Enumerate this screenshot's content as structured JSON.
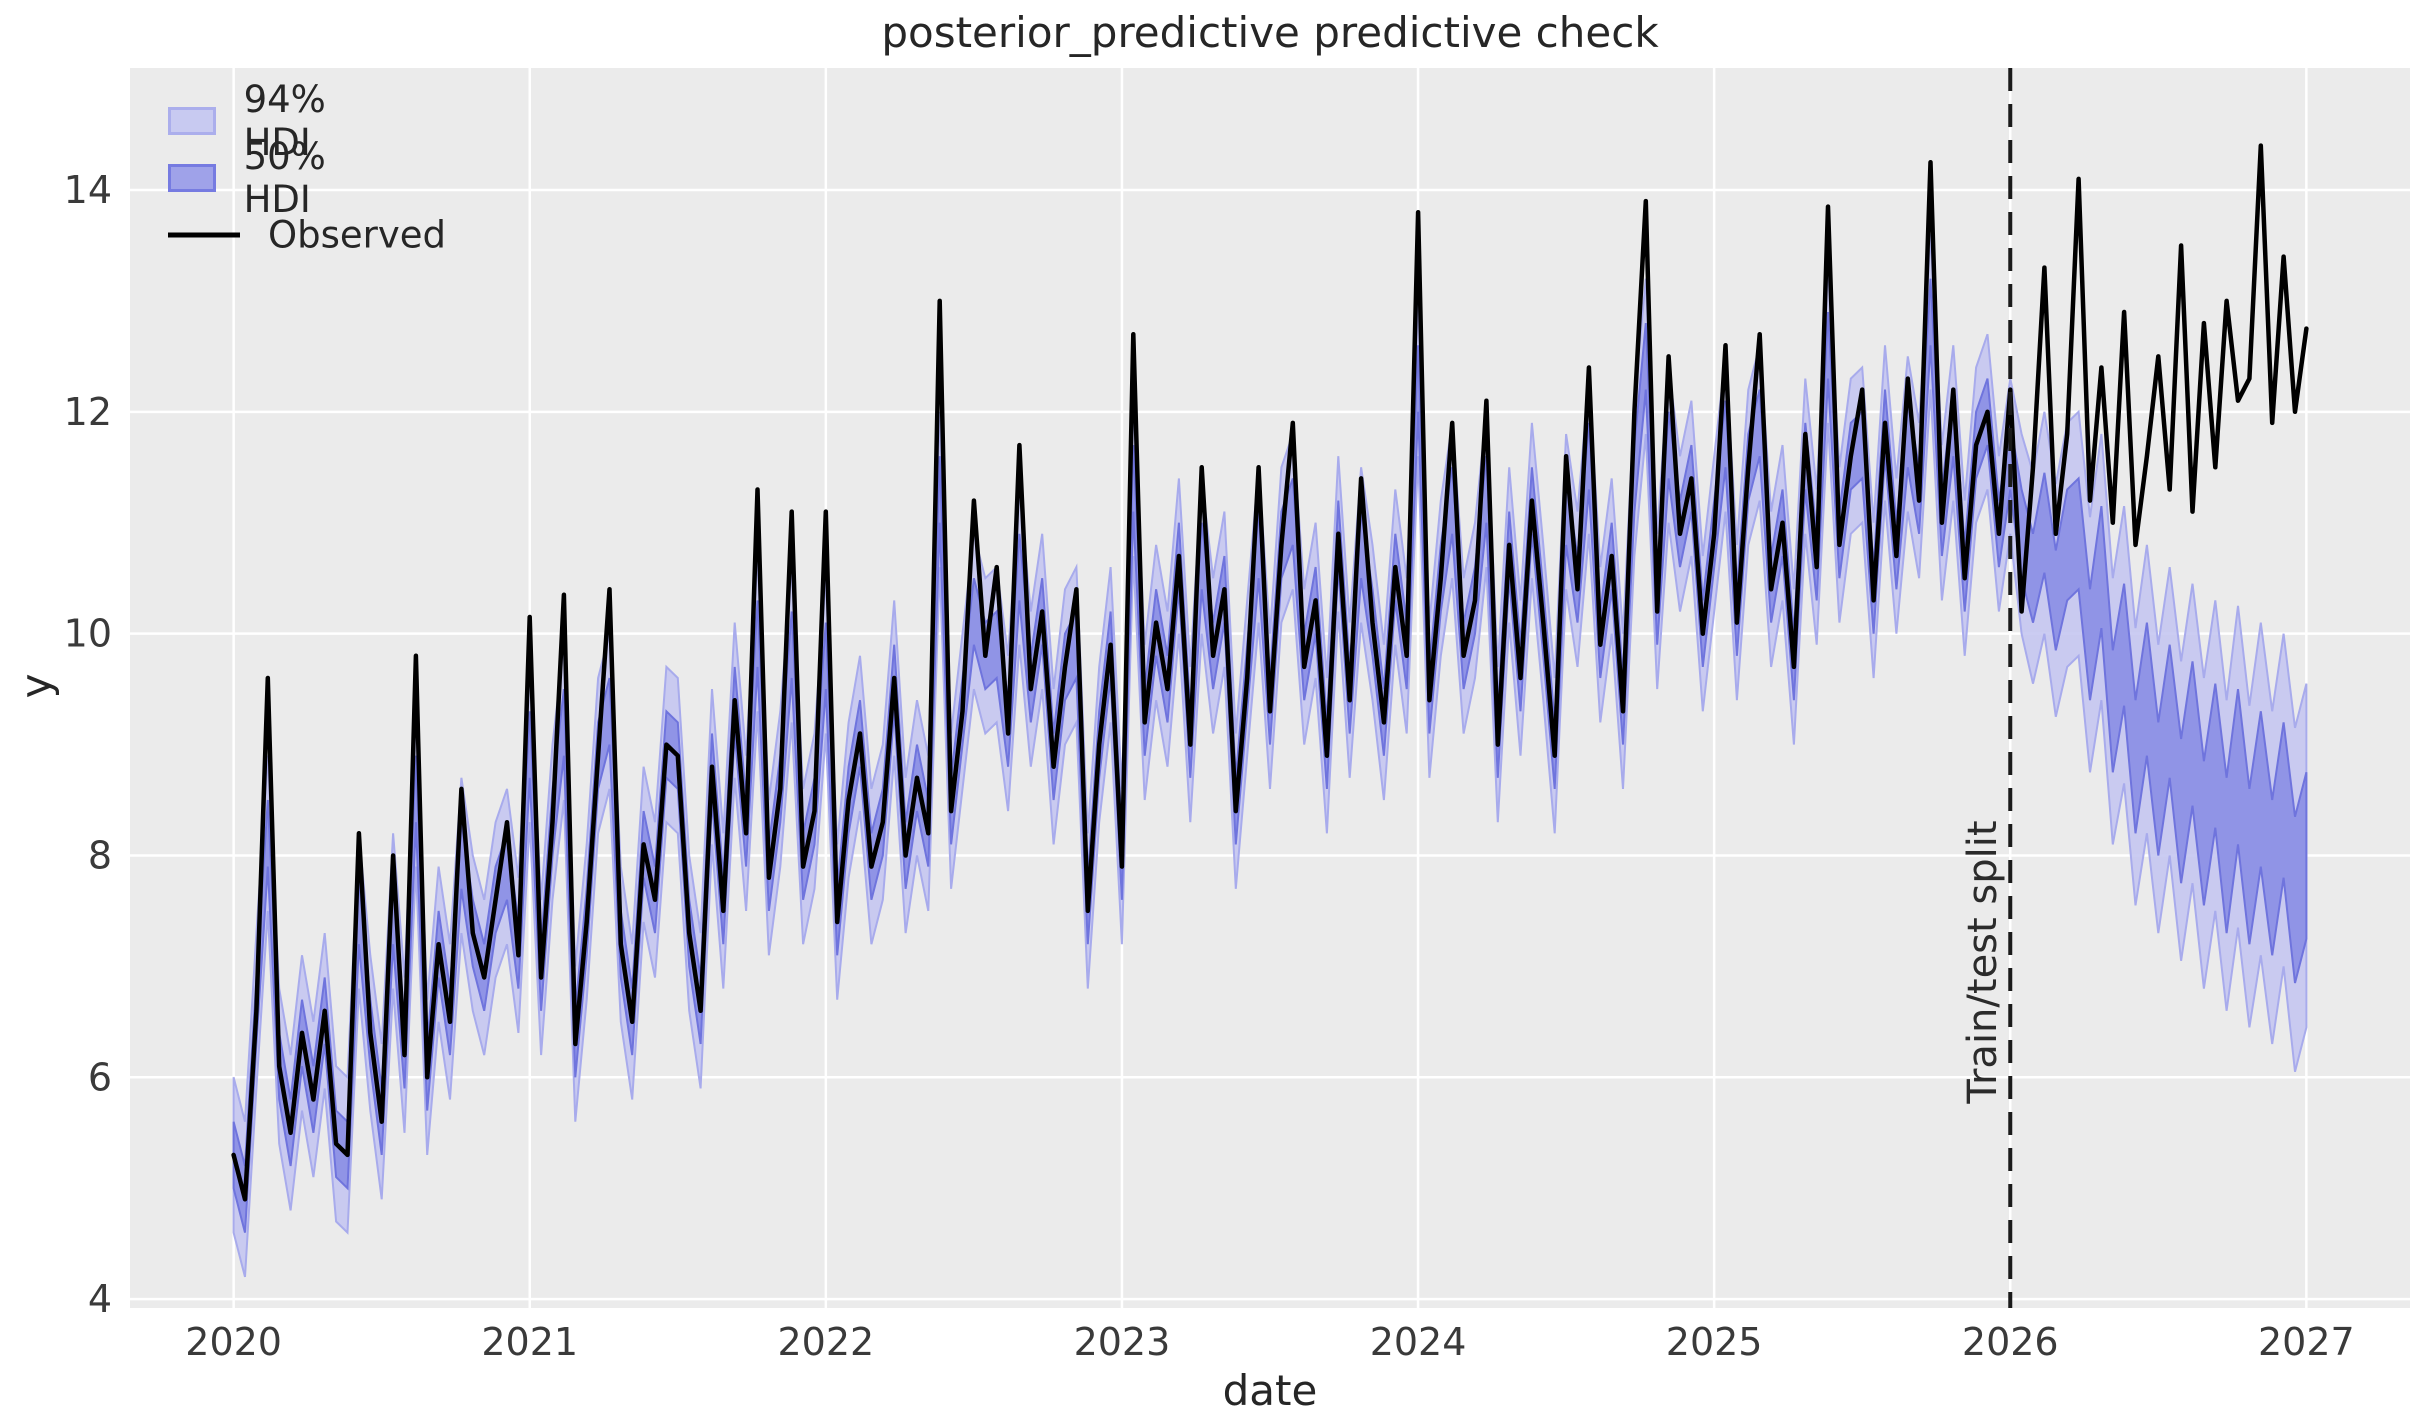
{
  "title": "posterior_predictive predictive check",
  "axes": {
    "xlabel": "date",
    "ylabel": "y"
  },
  "legend": {
    "position": "upper left",
    "items": [
      {
        "label": "94% HDI",
        "type": "band",
        "fill": "#c8caf1",
        "border": "#abaeec"
      },
      {
        "label": "50% HDI",
        "type": "band",
        "fill": "#9fa2e9",
        "border": "#767be1"
      },
      {
        "label": "Observed",
        "type": "line",
        "color": "#000000"
      }
    ]
  },
  "annotations": {
    "train_test_split": {
      "label": "Train/test split",
      "x": 2026.0,
      "line_style": "dashed",
      "line_color": "#1a1a1a"
    }
  },
  "chart_data": {
    "type": "line",
    "title": "posterior_predictive predictive check",
    "xlabel": "date",
    "ylabel": "y",
    "grid": true,
    "x_ticks": [
      2020,
      2021,
      2022,
      2023,
      2024,
      2025,
      2026,
      2027
    ],
    "y_ticks": [
      4,
      6,
      8,
      10,
      12,
      14
    ],
    "xlim": [
      2019.65,
      2027.35
    ],
    "ylim": [
      3.92,
      15.1
    ],
    "x": {
      "start": 2020,
      "step_years": 0.0384615,
      "count": 183,
      "unit": "decimal year, biweekly"
    },
    "split_index": 157,
    "series": {
      "observed": [
        5.3,
        4.9,
        6.6,
        9.6,
        6.1,
        5.5,
        6.4,
        5.8,
        6.6,
        5.4,
        5.3,
        8.2,
        6.4,
        5.6,
        8.0,
        6.2,
        9.8,
        6.0,
        7.2,
        6.5,
        8.6,
        7.3,
        6.9,
        7.6,
        8.3,
        7.1,
        10.15,
        6.9,
        8.3,
        10.35,
        6.3,
        7.4,
        8.9,
        10.4,
        7.2,
        6.5,
        8.1,
        7.6,
        9.0,
        8.9,
        7.3,
        6.6,
        8.8,
        7.5,
        9.4,
        8.2,
        11.3,
        7.8,
        8.6,
        11.1,
        7.9,
        8.4,
        11.1,
        7.4,
        8.5,
        9.1,
        7.9,
        8.3,
        9.6,
        8.0,
        8.7,
        8.2,
        13.0,
        8.4,
        9.3,
        11.2,
        9.8,
        10.6,
        9.1,
        11.7,
        9.5,
        10.2,
        8.8,
        9.7,
        10.4,
        7.5,
        9.0,
        9.9,
        7.9,
        12.7,
        9.2,
        10.1,
        9.5,
        10.7,
        9.0,
        11.5,
        9.8,
        10.4,
        8.4,
        9.6,
        11.5,
        9.3,
        10.8,
        11.9,
        9.7,
        10.3,
        8.9,
        10.9,
        9.4,
        11.4,
        10.1,
        9.2,
        10.6,
        9.8,
        13.8,
        9.4,
        10.5,
        11.9,
        9.8,
        10.3,
        12.1,
        9.0,
        10.8,
        9.6,
        11.2,
        10.1,
        8.9,
        11.6,
        10.4,
        12.4,
        9.9,
        10.7,
        9.3,
        12.0,
        13.9,
        10.2,
        12.5,
        10.9,
        11.4,
        10.0,
        10.9,
        12.6,
        10.1,
        11.5,
        12.7,
        10.4,
        11.0,
        9.7,
        11.8,
        10.6,
        13.85,
        10.8,
        11.6,
        12.2,
        10.3,
        11.9,
        10.7,
        12.3,
        11.2,
        14.25,
        11.0,
        12.2,
        10.5,
        11.7,
        12.0,
        10.9,
        12.2,
        10.2,
        11.5,
        13.3,
        10.9,
        11.8,
        14.1,
        11.2,
        12.4,
        11.0,
        12.9,
        10.8,
        11.6,
        12.5,
        11.3,
        13.5,
        11.1,
        12.8,
        11.5,
        13.0,
        12.1,
        12.3,
        14.4,
        11.9,
        13.4,
        12.0,
        12.75
      ],
      "hdi_mid": [
        5.3,
        4.9,
        6.6,
        8.2,
        6.1,
        5.5,
        6.4,
        5.8,
        6.6,
        5.4,
        5.3,
        7.5,
        6.4,
        5.6,
        7.5,
        6.2,
        8.6,
        6.0,
        7.2,
        6.5,
        8.0,
        7.3,
        6.9,
        7.6,
        7.9,
        7.1,
        9.0,
        6.9,
        8.3,
        9.2,
        6.3,
        7.4,
        8.9,
        9.3,
        7.2,
        6.5,
        8.1,
        7.6,
        9.0,
        8.9,
        7.3,
        6.6,
        8.8,
        7.5,
        9.4,
        8.2,
        10.0,
        7.8,
        8.6,
        9.9,
        7.9,
        8.4,
        9.8,
        7.4,
        8.5,
        9.1,
        7.9,
        8.3,
        9.6,
        8.0,
        8.7,
        8.2,
        11.3,
        8.4,
        9.3,
        10.2,
        9.8,
        9.9,
        9.1,
        10.6,
        9.5,
        10.2,
        8.8,
        9.7,
        9.9,
        7.5,
        9.0,
        9.9,
        7.9,
        11.4,
        9.2,
        10.1,
        9.5,
        10.7,
        9.0,
        10.7,
        9.8,
        10.4,
        8.4,
        9.6,
        10.8,
        9.3,
        10.8,
        11.1,
        9.7,
        10.3,
        8.9,
        10.9,
        9.4,
        10.8,
        10.1,
        9.2,
        10.6,
        9.8,
        12.3,
        9.4,
        10.5,
        11.2,
        9.8,
        10.3,
        11.3,
        9.0,
        10.8,
        9.6,
        11.2,
        10.1,
        8.9,
        11.1,
        10.4,
        11.6,
        9.9,
        10.7,
        9.3,
        11.4,
        12.5,
        10.2,
        11.7,
        10.9,
        11.4,
        10.0,
        10.9,
        11.8,
        10.1,
        11.5,
        11.9,
        10.4,
        11.0,
        9.7,
        11.6,
        10.6,
        12.6,
        10.8,
        11.6,
        11.7,
        10.3,
        11.9,
        10.7,
        11.8,
        11.2,
        12.9,
        11.0,
        11.9,
        10.5,
        11.7,
        12.0,
        10.9,
        11.6,
        10.9,
        10.5,
        11.0,
        10.3,
        10.8,
        10.9,
        9.9,
        10.6,
        9.3,
        9.9,
        8.8,
        9.5,
        8.6,
        9.3,
        8.4,
        9.1,
        8.2,
        8.9,
        8.0,
        8.8,
        7.9,
        8.6,
        7.8,
        8.5,
        7.6,
        8.0
      ],
      "hdi50_half_width": {
        "train": 0.3,
        "test": [
          0.4,
          0.4,
          0.45,
          0.45,
          0.5,
          0.5,
          0.5,
          0.55,
          0.55,
          0.55,
          0.6,
          0.6,
          0.6,
          0.6,
          0.65,
          0.65,
          0.65,
          0.65,
          0.7,
          0.7,
          0.7,
          0.7,
          0.7,
          0.7,
          0.75,
          0.75
        ]
      },
      "hdi94_half_width": {
        "train": 0.7,
        "test": [
          0.9,
          0.95,
          1.0,
          1.05,
          1.1,
          1.1,
          1.15,
          1.2,
          1.2,
          1.25,
          1.25,
          1.3,
          1.3,
          1.3,
          1.35,
          1.35,
          1.4,
          1.4,
          1.4,
          1.45,
          1.45,
          1.5,
          1.5,
          1.5,
          1.55,
          1.55
        ]
      }
    },
    "style": {
      "axes_background": "#ebebeb",
      "grid_color": "#ffffff",
      "hdi94_fill": "#c5c7f1",
      "hdi94_edge": "#a8abec",
      "hdi50_fill": "#8b8fe5",
      "hdi50_edge": "#6f74dd",
      "observed_color": "#000000",
      "tick_label_color": "#3a3a3a",
      "text_color": "#262626"
    }
  }
}
